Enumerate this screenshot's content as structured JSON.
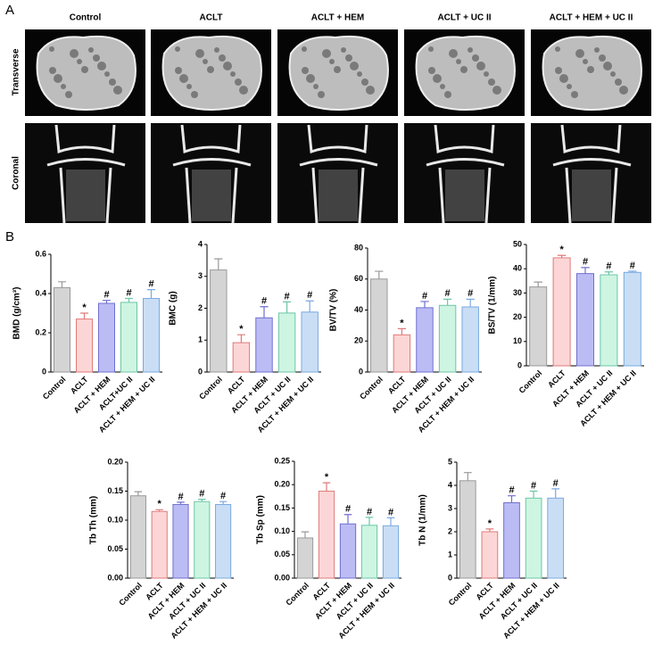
{
  "panel_a": {
    "label": "A",
    "columns": [
      "Control",
      "ACLT",
      "ACLT + HEM",
      "ACLT + UC II",
      "ACLT + HEM + UC II"
    ],
    "rows": [
      "Transverse",
      "Coronal"
    ]
  },
  "panel_b_label": "B",
  "chart_data": [
    {
      "type": "bar",
      "y_label": "BMD (g/cm³)",
      "categories": [
        "Control",
        "ACLT",
        "ACLT + HEM",
        "ACLT+UC II",
        "ACLT + HEM + UC II"
      ],
      "values": [
        0.43,
        0.27,
        0.35,
        0.355,
        0.375
      ],
      "errors": [
        0.03,
        0.03,
        0.015,
        0.02,
        0.045
      ],
      "annotations": [
        null,
        "*",
        "#",
        "#",
        "#"
      ],
      "colors": [
        "#d4d4d4",
        "#fcd6d6",
        "#bcbcf5",
        "#cdf5e2",
        "#c9def5"
      ],
      "edge_colors": [
        "#9a9a9a",
        "#e07a7a",
        "#6f6fd0",
        "#6cc6a8",
        "#7aa9e0"
      ],
      "ylim": [
        0,
        0.6
      ],
      "yticks": [
        0,
        0.2,
        0.4,
        0.6
      ]
    },
    {
      "type": "bar",
      "y_label": "BMC (g)",
      "categories": [
        "Control",
        "ACLT",
        "ACLT + HEM",
        "ACLT + UC II",
        "ACLT + HEM + UC II"
      ],
      "values": [
        3.2,
        0.92,
        1.7,
        1.85,
        1.88
      ],
      "errors": [
        0.35,
        0.25,
        0.35,
        0.35,
        0.35
      ],
      "annotations": [
        null,
        "*",
        "#",
        "#",
        "#"
      ],
      "colors": [
        "#d4d4d4",
        "#fcd6d6",
        "#bcbcf5",
        "#cdf5e2",
        "#c9def5"
      ],
      "edge_colors": [
        "#9a9a9a",
        "#e07a7a",
        "#6f6fd0",
        "#6cc6a8",
        "#7aa9e0"
      ],
      "ylim": [
        0,
        4
      ],
      "yticks": [
        0,
        1,
        2,
        3,
        4
      ]
    },
    {
      "type": "bar",
      "y_label": "BV/TV (%)",
      "categories": [
        "Control",
        "ACLT",
        "ACLT + HEM",
        "ACLT + UC II",
        "ACLT + HEM + UC II"
      ],
      "values": [
        60,
        24,
        41.5,
        43,
        42
      ],
      "errors": [
        5,
        4,
        4,
        4,
        5
      ],
      "annotations": [
        null,
        "*",
        "#",
        "#",
        "#"
      ],
      "colors": [
        "#d4d4d4",
        "#fcd6d6",
        "#bcbcf5",
        "#cdf5e2",
        "#c9def5"
      ],
      "edge_colors": [
        "#9a9a9a",
        "#e07a7a",
        "#6f6fd0",
        "#6cc6a8",
        "#7aa9e0"
      ],
      "ylim": [
        0,
        80
      ],
      "yticks": [
        0,
        20,
        40,
        60,
        80
      ]
    },
    {
      "type": "bar",
      "y_label": "BS/TV (1/mm)",
      "categories": [
        "Control",
        "ACLT",
        "ACLT + HEM",
        "ACLT + UC II",
        "ACLT + HEM + UC II"
      ],
      "values": [
        32.5,
        44.5,
        38,
        37.5,
        38.5
      ],
      "errors": [
        2,
        1,
        2.5,
        1.2,
        0.5
      ],
      "annotations": [
        null,
        "*",
        "#",
        "#",
        "#"
      ],
      "colors": [
        "#d4d4d4",
        "#fcd6d6",
        "#bcbcf5",
        "#cdf5e2",
        "#c9def5"
      ],
      "edge_colors": [
        "#9a9a9a",
        "#e07a7a",
        "#6f6fd0",
        "#6cc6a8",
        "#7aa9e0"
      ],
      "ylim": [
        0,
        50
      ],
      "yticks": [
        0,
        10,
        20,
        30,
        40,
        50
      ]
    },
    {
      "type": "bar",
      "y_label": "Tb Th (mm)",
      "categories": [
        "Control",
        "ACLT",
        "ACLT + HEM",
        "ACLT + UC II",
        "ACLT + HEM + UC II"
      ],
      "values": [
        0.142,
        0.115,
        0.127,
        0.132,
        0.127
      ],
      "errors": [
        0.007,
        0.003,
        0.004,
        0.004,
        0.005
      ],
      "annotations": [
        null,
        "*",
        "#",
        "#",
        "#"
      ],
      "colors": [
        "#d4d4d4",
        "#fcd6d6",
        "#bcbcf5",
        "#cdf5e2",
        "#c9def5"
      ],
      "edge_colors": [
        "#9a9a9a",
        "#e07a7a",
        "#6f6fd0",
        "#6cc6a8",
        "#7aa9e0"
      ],
      "ylim": [
        0,
        0.2
      ],
      "yticks": [
        {
          "value": 0,
          "label": "0.00"
        },
        {
          "value": 0.05,
          "label": "0.05"
        },
        {
          "value": 0.1,
          "label": "0.10"
        },
        {
          "value": 0.15,
          "label": "0.15"
        },
        {
          "value": 0.2,
          "label": "0.20"
        }
      ]
    },
    {
      "type": "bar",
      "y_label": "Tb Sp (mm)",
      "categories": [
        "Control",
        "ACLT",
        "ACLT + HEM",
        "ACLT + UC II",
        "ACLT + HEM + UC II"
      ],
      "values": [
        0.086,
        0.186,
        0.116,
        0.113,
        0.112
      ],
      "errors": [
        0.013,
        0.018,
        0.02,
        0.017,
        0.017
      ],
      "annotations": [
        null,
        "*",
        "#",
        "#",
        "#"
      ],
      "colors": [
        "#d4d4d4",
        "#fcd6d6",
        "#bcbcf5",
        "#cdf5e2",
        "#c9def5"
      ],
      "edge_colors": [
        "#9a9a9a",
        "#e07a7a",
        "#6f6fd0",
        "#6cc6a8",
        "#7aa9e0"
      ],
      "ylim": [
        0,
        0.25
      ],
      "yticks": [
        {
          "value": 0,
          "label": "0.00"
        },
        {
          "value": 0.05,
          "label": "0.05"
        },
        {
          "value": 0.1,
          "label": "0.10"
        },
        {
          "value": 0.15,
          "label": "0.15"
        },
        {
          "value": 0.2,
          "label": "0.20"
        },
        {
          "value": 0.25,
          "label": "0.25"
        }
      ]
    },
    {
      "type": "bar",
      "y_label": "Tb N (1/mm)",
      "categories": [
        "Control",
        "ACLT",
        "ACLT + HEM",
        "ACLT + UC II",
        "ACLT + HEM + UC II"
      ],
      "values": [
        4.2,
        2.0,
        3.25,
        3.45,
        3.45
      ],
      "errors": [
        0.35,
        0.12,
        0.3,
        0.3,
        0.4
      ],
      "annotations": [
        null,
        "*",
        "#",
        "#",
        "#"
      ],
      "colors": [
        "#d4d4d4",
        "#fcd6d6",
        "#bcbcf5",
        "#cdf5e2",
        "#c9def5"
      ],
      "edge_colors": [
        "#9a9a9a",
        "#e07a7a",
        "#6f6fd0",
        "#6cc6a8",
        "#7aa9e0"
      ],
      "ylim": [
        0,
        5
      ],
      "yticks": [
        0,
        1,
        2,
        3,
        4,
        5
      ]
    }
  ]
}
